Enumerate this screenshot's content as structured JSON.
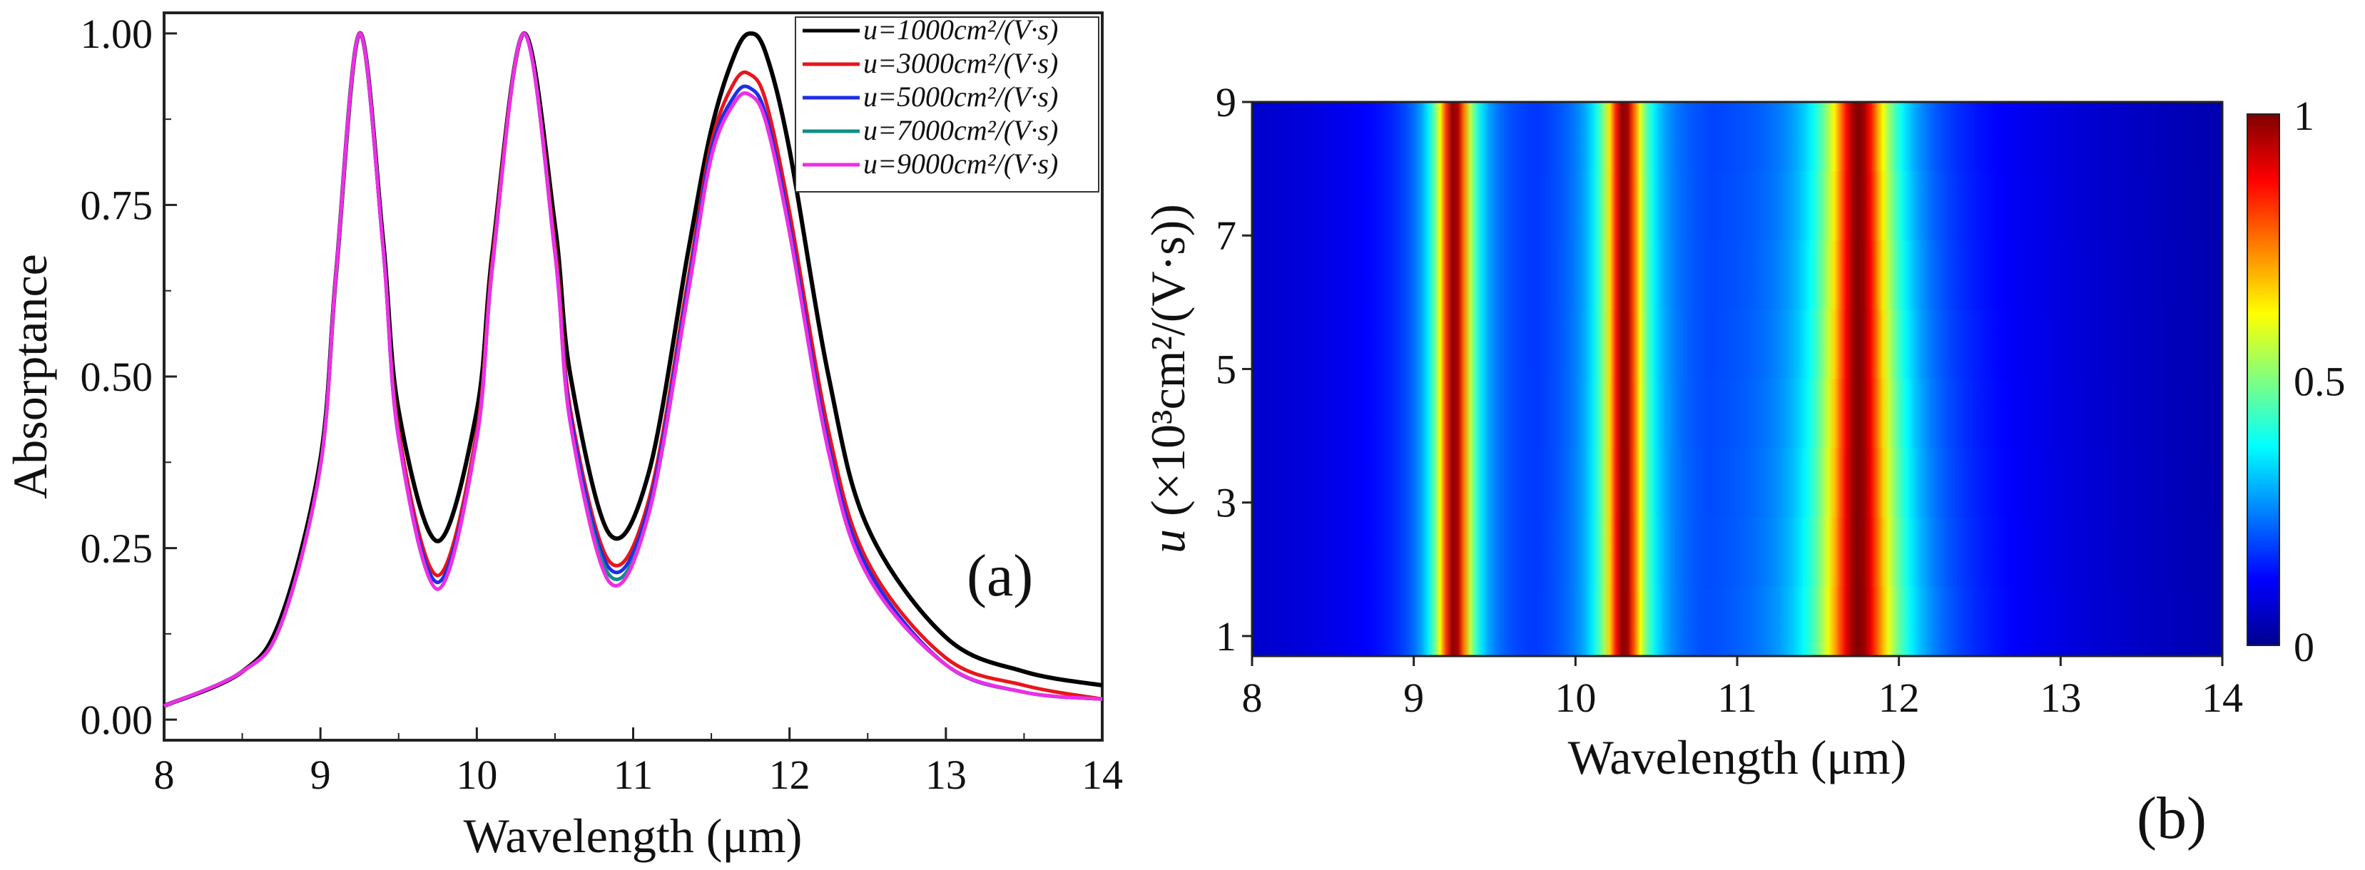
{
  "chart_data": [
    {
      "type": "line",
      "panel_label": "(a)",
      "xlabel": "Wavelength (μm)",
      "ylabel": "Absorptance",
      "xlim": [
        8,
        14
      ],
      "ylim": [
        -0.03,
        1.03
      ],
      "xticks": [
        "8",
        "9",
        "10",
        "11",
        "12",
        "13",
        "14"
      ],
      "yticks": [
        "0.00",
        "0.25",
        "0.50",
        "0.75",
        "1.00"
      ],
      "legend_position": "top-right",
      "x": [
        8.0,
        8.5,
        8.75,
        9.0,
        9.1,
        9.25,
        9.4,
        9.5,
        9.75,
        10.0,
        10.1,
        10.3,
        10.5,
        10.6,
        10.85,
        11.1,
        11.35,
        11.5,
        11.65,
        11.75,
        11.85,
        12.0,
        12.25,
        12.5,
        13.0,
        13.5,
        14.0
      ],
      "series": [
        {
          "name": "u=1000cm²/(V·s)",
          "color": "#000000",
          "values": [
            0.02,
            0.07,
            0.15,
            0.38,
            0.65,
            1.0,
            0.7,
            0.45,
            0.26,
            0.45,
            0.68,
            1.0,
            0.72,
            0.5,
            0.27,
            0.36,
            0.68,
            0.86,
            0.97,
            1.0,
            0.97,
            0.83,
            0.5,
            0.28,
            0.12,
            0.07,
            0.05
          ]
        },
        {
          "name": "u=3000cm²/(V·s)",
          "color": "#e8151b",
          "values": [
            0.02,
            0.07,
            0.14,
            0.37,
            0.65,
            1.0,
            0.69,
            0.42,
            0.21,
            0.42,
            0.67,
            1.0,
            0.69,
            0.45,
            0.23,
            0.32,
            0.64,
            0.84,
            0.93,
            0.94,
            0.9,
            0.74,
            0.42,
            0.23,
            0.09,
            0.05,
            0.03
          ]
        },
        {
          "name": "u=5000cm²/(V·s)",
          "color": "#1f2ee8",
          "values": [
            0.02,
            0.07,
            0.14,
            0.37,
            0.65,
            1.0,
            0.69,
            0.41,
            0.2,
            0.41,
            0.66,
            1.0,
            0.68,
            0.44,
            0.22,
            0.31,
            0.63,
            0.83,
            0.91,
            0.92,
            0.88,
            0.72,
            0.4,
            0.22,
            0.08,
            0.04,
            0.03
          ]
        },
        {
          "name": "u=7000cm²/(V·s)",
          "color": "#0f8f86",
          "values": [
            0.02,
            0.07,
            0.14,
            0.37,
            0.65,
            1.0,
            0.69,
            0.41,
            0.19,
            0.41,
            0.66,
            1.0,
            0.68,
            0.43,
            0.21,
            0.3,
            0.62,
            0.82,
            0.9,
            0.91,
            0.87,
            0.71,
            0.39,
            0.21,
            0.08,
            0.04,
            0.03
          ]
        },
        {
          "name": "u=9000cm²/(V·s)",
          "color": "#ee2ee6",
          "values": [
            0.02,
            0.07,
            0.14,
            0.37,
            0.65,
            1.0,
            0.69,
            0.41,
            0.19,
            0.41,
            0.66,
            1.0,
            0.68,
            0.43,
            0.2,
            0.3,
            0.62,
            0.82,
            0.9,
            0.91,
            0.87,
            0.71,
            0.39,
            0.21,
            0.08,
            0.04,
            0.03
          ]
        }
      ]
    },
    {
      "type": "heatmap",
      "panel_label": "(b)",
      "xlabel": "Wavelength (μm)",
      "ylabel_prefix": "u",
      "ylabel_rest": "(×10³cm²/(V·s))",
      "xlim": [
        8,
        14
      ],
      "ylim": [
        0.7,
        9
      ],
      "xticks": [
        "8",
        "9",
        "10",
        "11",
        "12",
        "13",
        "14"
      ],
      "yticks": [
        "1",
        "3",
        "5",
        "7",
        "9"
      ],
      "colorbar_ticks": [
        "0",
        "0.5",
        "1"
      ],
      "colormap": "jet",
      "colormap_stops": [
        "#00008f",
        "#0000ff",
        "#0080ff",
        "#00ffff",
        "#80ff80",
        "#ffff00",
        "#ff8000",
        "#ff0000",
        "#800000"
      ],
      "peaks": [
        {
          "center_um": 9.25,
          "max_value": 1.0,
          "width_at_u1_um": 0.36,
          "width_at_u9_um": 0.36
        },
        {
          "center_um": 10.3,
          "max_value": 1.0,
          "width_at_u1_um": 0.4,
          "width_at_u9_um": 0.38
        },
        {
          "center_um": 11.75,
          "max_value": 1.0,
          "width_at_u1_um": 0.75,
          "width_at_u9_um": 0.62
        }
      ],
      "baseline_value": 0.13
    }
  ]
}
